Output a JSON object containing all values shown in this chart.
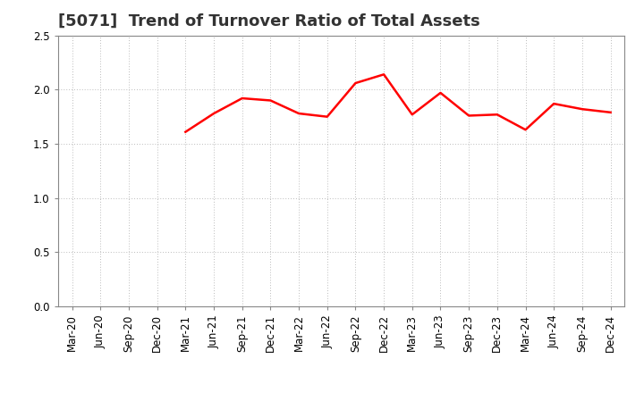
{
  "title": "[5071]  Trend of Turnover Ratio of Total Assets",
  "x_labels": [
    "Mar-20",
    "Jun-20",
    "Sep-20",
    "Dec-20",
    "Mar-21",
    "Jun-21",
    "Sep-21",
    "Dec-21",
    "Mar-22",
    "Jun-22",
    "Sep-22",
    "Dec-22",
    "Mar-23",
    "Jun-23",
    "Sep-23",
    "Dec-23",
    "Mar-24",
    "Jun-24",
    "Sep-24",
    "Dec-24"
  ],
  "y_values": [
    null,
    null,
    null,
    null,
    1.61,
    1.78,
    1.92,
    1.9,
    1.78,
    1.75,
    2.06,
    2.14,
    1.77,
    1.97,
    1.76,
    1.77,
    1.63,
    1.87,
    1.82,
    1.79
  ],
  "ylim": [
    0.0,
    2.5
  ],
  "yticks": [
    0.0,
    0.5,
    1.0,
    1.5,
    2.0,
    2.5
  ],
  "line_color": "#ff0000",
  "line_width": 1.8,
  "background_color": "#ffffff",
  "grid_color": "#bbbbbb",
  "title_fontsize": 13,
  "tick_fontsize": 8.5
}
